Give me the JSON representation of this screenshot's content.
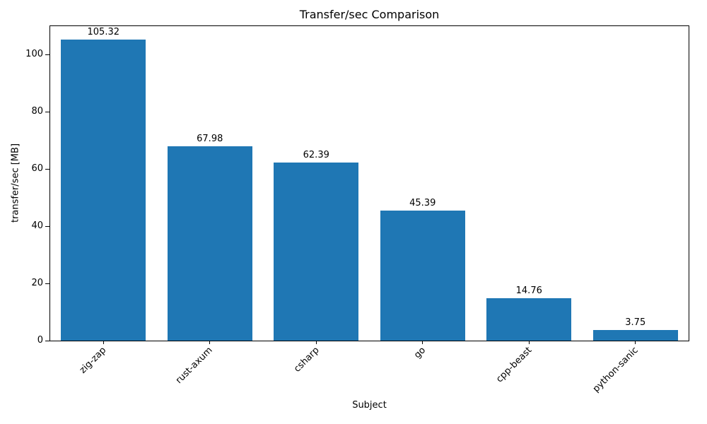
{
  "chart_data": {
    "type": "bar",
    "title": "Transfer/sec Comparison",
    "xlabel": "Subject",
    "ylabel": "transfer/sec [MB]",
    "categories": [
      "zig-zap",
      "rust-axum",
      "csharp",
      "go",
      "cpp-beast",
      "python-sanic"
    ],
    "values": [
      105.32,
      67.98,
      62.39,
      45.39,
      14.76,
      3.75
    ],
    "bar_labels": [
      "105.32",
      "67.98",
      "62.39",
      "45.39",
      "14.76",
      "3.75"
    ],
    "bar_color": "#1f77b4",
    "ylim": [
      0,
      110
    ],
    "yticks": [
      0,
      20,
      40,
      60,
      80,
      100
    ],
    "xtick_rotation_deg": 45,
    "grid": false,
    "legend": null
  }
}
